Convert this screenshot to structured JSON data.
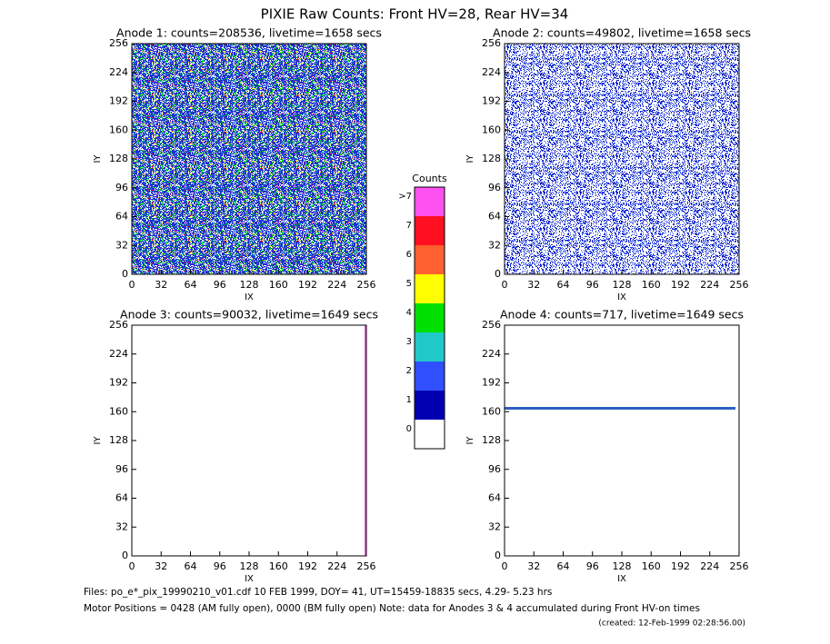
{
  "title": "PIXIE Raw Counts:  Front HV=28, Rear HV=34",
  "chart_data": [
    {
      "type": "heatmap",
      "title": "Anode 1: counts=208536, livetime=1658 secs",
      "xlabel": "IX",
      "ylabel": "IY",
      "xlim": [
        0,
        256
      ],
      "ylim": [
        0,
        256
      ],
      "xticks": [
        0,
        32,
        64,
        96,
        128,
        160,
        192,
        224,
        256
      ],
      "yticks": [
        0,
        32,
        64,
        96,
        128,
        160,
        192,
        224,
        256
      ]
    },
    {
      "type": "heatmap",
      "title": "Anode 2: counts=49802, livetime=1658 secs",
      "xlabel": "IX",
      "ylabel": "IY",
      "xlim": [
        0,
        256
      ],
      "ylim": [
        0,
        256
      ],
      "xticks": [
        0,
        32,
        64,
        96,
        128,
        160,
        192,
        224,
        256
      ],
      "yticks": [
        0,
        32,
        64,
        96,
        128,
        160,
        192,
        224,
        256
      ]
    },
    {
      "type": "heatmap",
      "title": "Anode 3: counts=90032, livetime=1649 secs",
      "xlabel": "IX",
      "ylabel": "IY",
      "xlim": [
        0,
        256
      ],
      "ylim": [
        0,
        256
      ],
      "xticks": [
        0,
        32,
        64,
        96,
        128,
        160,
        192,
        224,
        256
      ],
      "yticks": [
        0,
        32,
        64,
        96,
        128,
        160,
        192,
        224,
        256
      ]
    },
    {
      "type": "heatmap",
      "title": "Anode 4: counts=717, livetime=1649 secs",
      "xlabel": "IX",
      "ylabel": "IY",
      "xlim": [
        0,
        256
      ],
      "ylim": [
        0,
        256
      ],
      "xticks": [
        0,
        32,
        64,
        96,
        128,
        160,
        192,
        224,
        256
      ],
      "yticks": [
        0,
        32,
        64,
        96,
        128,
        160,
        192,
        224,
        256
      ]
    }
  ],
  "colorbar": {
    "title": "Counts",
    "labels": [
      "0",
      "1",
      "2",
      "3",
      "4",
      "5",
      "6",
      "7",
      ">7"
    ],
    "colors": [
      "#ffffff",
      "#0000b0",
      "#3050ff",
      "#20c8c8",
      "#00e000",
      "#ffff00",
      "#ff6030",
      "#ff1020",
      "#ff50f0"
    ]
  },
  "footer": [
    "Files: po_e*_pix_19990210_v01.cdf    10 FEB 1999, DOY= 41, UT=15459-18835 secs,  4.29- 5.23 hrs",
    "Motor Positions = 0428 (AM fully open), 0000 (BM fully open)    Note: data for Anodes 3 & 4 accumulated during Front HV-on times",
    "(created: 12-Feb-1999 02:28:56.00)"
  ]
}
